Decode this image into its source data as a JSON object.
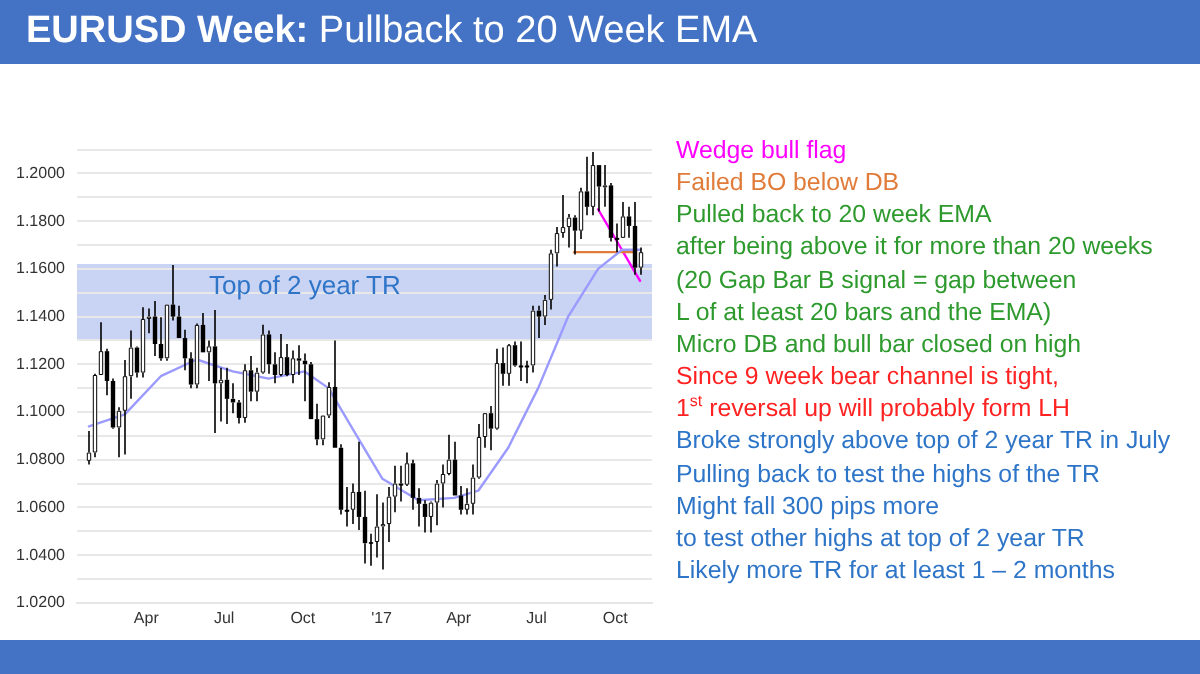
{
  "chart_data": {
    "type": "candlestick",
    "title": "EURUSD Week: Pullback to 20 Week EMA",
    "x": [
      "2016-01-25",
      "2016-02-01",
      "2016-02-08",
      "2016-02-15",
      "2016-02-22",
      "2016-02-29",
      "2016-03-07",
      "2016-03-14",
      "2016-03-21",
      "2016-03-28",
      "2016-04-04",
      "2016-04-11",
      "2016-04-18",
      "2016-04-25",
      "2016-05-02",
      "2016-05-09",
      "2016-05-16",
      "2016-05-23",
      "2016-05-30",
      "2016-06-06",
      "2016-06-13",
      "2016-06-20",
      "2016-06-27",
      "2016-07-04",
      "2016-07-11",
      "2016-07-18",
      "2016-07-25",
      "2016-08-01",
      "2016-08-08",
      "2016-08-15",
      "2016-08-22",
      "2016-08-29",
      "2016-09-05",
      "2016-09-12",
      "2016-09-19",
      "2016-09-26",
      "2016-10-03",
      "2016-10-10",
      "2016-10-17",
      "2016-10-24",
      "2016-10-31",
      "2016-11-07",
      "2016-11-14",
      "2016-11-21",
      "2016-11-28",
      "2016-12-05",
      "2016-12-12",
      "2016-12-19",
      "2016-12-26",
      "2017-01-02",
      "2017-01-09",
      "2017-01-16",
      "2017-01-23",
      "2017-01-30",
      "2017-02-06",
      "2017-02-13",
      "2017-02-20",
      "2017-02-27",
      "2017-03-06",
      "2017-03-13",
      "2017-03-20",
      "2017-03-27",
      "2017-04-03",
      "2017-04-10",
      "2017-04-17",
      "2017-04-24",
      "2017-05-01",
      "2017-05-08",
      "2017-05-15",
      "2017-05-22",
      "2017-05-29",
      "2017-06-05",
      "2017-06-12",
      "2017-06-19",
      "2017-06-26",
      "2017-07-03",
      "2017-07-10",
      "2017-07-17",
      "2017-07-24",
      "2017-07-31",
      "2017-08-07",
      "2017-08-14",
      "2017-08-21",
      "2017-08-28",
      "2017-09-04",
      "2017-09-11",
      "2017-09-18",
      "2017-09-25",
      "2017-10-02",
      "2017-10-09",
      "2017-10-16",
      "2017-10-23",
      "2017-10-30"
    ],
    "ohlc": [
      [
        1.0795,
        1.092,
        1.078,
        1.083
      ],
      [
        1.083,
        1.116,
        1.081,
        1.1155
      ],
      [
        1.1155,
        1.1376,
        1.1155,
        1.1255
      ],
      [
        1.1255,
        1.1265,
        1.107,
        1.113
      ],
      [
        1.113,
        1.114,
        1.093,
        1.0935
      ],
      [
        1.0935,
        1.102,
        1.081,
        1.1005
      ],
      [
        1.1005,
        1.1218,
        1.0822,
        1.115
      ],
      [
        1.115,
        1.1342,
        1.1055,
        1.127
      ],
      [
        1.127,
        1.1275,
        1.1145,
        1.1165
      ],
      [
        1.1165,
        1.1439,
        1.1145,
        1.139
      ],
      [
        1.139,
        1.1434,
        1.133,
        1.14
      ],
      [
        1.14,
        1.1465,
        1.1235,
        1.1285
      ],
      [
        1.1285,
        1.1397,
        1.1215,
        1.1225
      ],
      [
        1.1225,
        1.145,
        1.1215,
        1.145
      ],
      [
        1.145,
        1.1616,
        1.1384,
        1.14
      ],
      [
        1.14,
        1.1445,
        1.131,
        1.131
      ],
      [
        1.131,
        1.1345,
        1.1175,
        1.1225
      ],
      [
        1.1225,
        1.125,
        1.11,
        1.1115
      ],
      [
        1.1115,
        1.1371,
        1.11,
        1.1365
      ],
      [
        1.1365,
        1.1415,
        1.125,
        1.125
      ],
      [
        1.125,
        1.13,
        1.113,
        1.1275
      ],
      [
        1.1275,
        1.1428,
        1.0912,
        1.112
      ],
      [
        1.112,
        1.1185,
        1.096,
        1.1135
      ],
      [
        1.1135,
        1.1185,
        1.095,
        1.1055
      ],
      [
        1.1055,
        1.112,
        1.0995,
        1.104
      ],
      [
        1.104,
        1.105,
        1.0952,
        1.0975
      ],
      [
        1.0975,
        1.12,
        1.0955,
        1.1175
      ],
      [
        1.1175,
        1.1235,
        1.1045,
        1.1085
      ],
      [
        1.1085,
        1.1185,
        1.1045,
        1.1165
      ],
      [
        1.1165,
        1.1366,
        1.116,
        1.1325
      ],
      [
        1.1325,
        1.1342,
        1.116,
        1.12
      ],
      [
        1.12,
        1.125,
        1.112,
        1.1155
      ],
      [
        1.1155,
        1.1327,
        1.115,
        1.123
      ],
      [
        1.123,
        1.1285,
        1.115,
        1.1155
      ],
      [
        1.1155,
        1.1258,
        1.112,
        1.1225
      ],
      [
        1.1225,
        1.128,
        1.1155,
        1.1215
      ],
      [
        1.1215,
        1.1245,
        1.1045,
        1.12
      ],
      [
        1.12,
        1.121,
        1.097,
        1.097
      ],
      [
        1.097,
        1.1035,
        1.086,
        1.0885
      ],
      [
        1.0885,
        1.0985,
        1.086,
        1.0985
      ],
      [
        1.0985,
        1.1125,
        1.0975,
        1.1105
      ],
      [
        1.1105,
        1.13,
        1.085,
        1.085
      ],
      [
        1.085,
        1.0865,
        1.057,
        1.059
      ],
      [
        1.059,
        1.0685,
        1.052,
        1.059
      ],
      [
        1.059,
        1.07,
        1.053,
        1.0665
      ],
      [
        1.0665,
        1.0875,
        1.0505,
        1.056
      ],
      [
        1.056,
        1.067,
        1.0365,
        1.045
      ],
      [
        1.045,
        1.049,
        1.0355,
        1.0455
      ],
      [
        1.0455,
        1.0655,
        1.039,
        1.052
      ],
      [
        1.052,
        1.062,
        1.034,
        1.053
      ],
      [
        1.053,
        1.0685,
        1.0455,
        1.0645
      ],
      [
        1.0645,
        1.0775,
        1.058,
        1.07
      ],
      [
        1.07,
        1.0775,
        1.0625,
        1.0695
      ],
      [
        1.0695,
        1.083,
        1.069,
        1.0785
      ],
      [
        1.0785,
        1.08,
        1.059,
        1.064
      ],
      [
        1.064,
        1.068,
        1.052,
        1.0615
      ],
      [
        1.0615,
        1.063,
        1.0495,
        1.056
      ],
      [
        1.056,
        1.0625,
        1.0495,
        1.062
      ],
      [
        1.062,
        1.0715,
        1.0525,
        1.07
      ],
      [
        1.07,
        1.078,
        1.06,
        1.074
      ],
      [
        1.074,
        1.0905,
        1.0735,
        1.08
      ],
      [
        1.08,
        1.0875,
        1.065,
        1.065
      ],
      [
        1.065,
        1.069,
        1.057,
        1.059
      ],
      [
        1.059,
        1.068,
        1.057,
        1.0615
      ],
      [
        1.0615,
        1.078,
        1.057,
        1.0725
      ],
      [
        1.0725,
        1.095,
        1.072,
        1.0895
      ],
      [
        1.0895,
        1.0995,
        1.085,
        1.0995
      ],
      [
        1.0995,
        1.1025,
        1.084,
        1.093
      ],
      [
        1.093,
        1.1265,
        1.0925,
        1.1205
      ],
      [
        1.1205,
        1.127,
        1.111,
        1.116
      ],
      [
        1.116,
        1.1285,
        1.111,
        1.128
      ],
      [
        1.128,
        1.1295,
        1.119,
        1.1195
      ],
      [
        1.1195,
        1.1295,
        1.113,
        1.1195
      ],
      [
        1.1195,
        1.1215,
        1.112,
        1.1195
      ],
      [
        1.1195,
        1.1445,
        1.1165,
        1.1425
      ],
      [
        1.1425,
        1.1445,
        1.131,
        1.14
      ],
      [
        1.14,
        1.149,
        1.1365,
        1.147
      ],
      [
        1.147,
        1.168,
        1.143,
        1.1665
      ],
      [
        1.1665,
        1.1775,
        1.161,
        1.175
      ],
      [
        1.175,
        1.191,
        1.173,
        1.1775
      ],
      [
        1.1775,
        1.183,
        1.169,
        1.1815
      ],
      [
        1.1815,
        1.1825,
        1.166,
        1.176
      ],
      [
        1.176,
        1.194,
        1.1725,
        1.1925
      ],
      [
        1.1925,
        1.207,
        1.1825,
        1.186
      ],
      [
        1.186,
        1.209,
        1.1825,
        1.2035
      ],
      [
        1.2035,
        1.2035,
        1.184,
        1.1945
      ],
      [
        1.1945,
        1.2035,
        1.186,
        1.195
      ],
      [
        1.195,
        1.196,
        1.1715,
        1.173
      ],
      [
        1.173,
        1.179,
        1.167,
        1.173
      ],
      [
        1.173,
        1.188,
        1.173,
        1.182
      ],
      [
        1.182,
        1.186,
        1.173,
        1.178
      ],
      [
        1.178,
        1.188,
        1.1575,
        1.1605
      ],
      [
        1.1605,
        1.169,
        1.1575,
        1.167
      ]
    ],
    "series": [
      {
        "type": "line",
        "color": "#9b9bff",
        "x": [
          "2016-01-25",
          "2016-03-07",
          "2016-04-18",
          "2016-05-30",
          "2016-07-11",
          "2016-08-22",
          "2016-10-03",
          "2016-10-31",
          "2016-11-28",
          "2017-01-02",
          "2017-02-13",
          "2017-03-27",
          "2017-04-24",
          "2017-05-29",
          "2017-07-03",
          "2017-08-07",
          "2017-09-11",
          "2017-10-09",
          "2017-10-30"
        ],
        "values": [
          1.094,
          1.099,
          1.115,
          1.122,
          1.117,
          1.114,
          1.117,
          1.11,
          1.093,
          1.072,
          1.063,
          1.064,
          1.067,
          1.085,
          1.11,
          1.14,
          1.16,
          1.168,
          1.168
        ]
      },
      {
        "type": "line",
        "color": "#e07b39",
        "x": [
          "2017-08-14",
          "2017-10-23"
        ],
        "values": [
          1.167,
          1.167
        ]
      },
      {
        "type": "line",
        "color": "#ff00ff",
        "x": [
          "2017-09-11",
          "2017-10-30"
        ],
        "values": [
          1.185,
          1.155
        ]
      }
    ],
    "bands": [
      {
        "axis": "y",
        "from": 1.13,
        "to": 1.162,
        "label": "Top of 2 year TR",
        "color": "#c9d3f3"
      }
    ],
    "xlim": [
      "2016-01-11",
      "2017-11-13"
    ],
    "xticks": [
      {
        "value": "2016-04-01",
        "label": "Apr"
      },
      {
        "value": "2016-07-01",
        "label": "Jul"
      },
      {
        "value": "2016-10-01",
        "label": "Oct"
      },
      {
        "value": "2017-01-01",
        "label": "'17"
      },
      {
        "value": "2017-04-01",
        "label": "Apr"
      },
      {
        "value": "2017-07-01",
        "label": "Jul"
      },
      {
        "value": "2017-10-01",
        "label": "Oct"
      }
    ],
    "ylim": [
      1.02,
      1.21
    ],
    "yticks": [
      {
        "value": 1.02,
        "label": "1.0200"
      },
      {
        "value": 1.03,
        "label": null
      },
      {
        "value": 1.04,
        "label": "1.0400"
      },
      {
        "value": 1.05,
        "label": null
      },
      {
        "value": 1.06,
        "label": "1.0600"
      },
      {
        "value": 1.07,
        "label": null
      },
      {
        "value": 1.08,
        "label": "1.0800"
      },
      {
        "value": 1.09,
        "label": null
      },
      {
        "value": 1.1,
        "label": "1.1000"
      },
      {
        "value": 1.11,
        "label": null
      },
      {
        "value": 1.12,
        "label": "1.1200"
      },
      {
        "value": 1.13,
        "label": null
      },
      {
        "value": 1.14,
        "label": "1.1400"
      },
      {
        "value": 1.15,
        "label": null
      },
      {
        "value": 1.16,
        "label": "1.1600"
      },
      {
        "value": 1.17,
        "label": null
      },
      {
        "value": 1.18,
        "label": "1.1800"
      },
      {
        "value": 1.19,
        "label": null
      },
      {
        "value": 1.2,
        "label": "1.2000"
      },
      {
        "value": 1.21,
        "label": null
      }
    ],
    "grid": "y",
    "legend": false,
    "annotations": [
      "Wedge bull flag",
      "Failed BO below DB",
      "Pulled back to 20 week EMA",
      "after being above it for more than 20 weeks",
      "(20 Gap Bar B signal = gap between",
      "L of at least 20 bars and the EMA)",
      "Micro DB and bull bar closed on high",
      "Since 9 week bear channel is tight,",
      "1$^{st}$ reversal up will probably form LH",
      "Broke strongly above top of 2 year TR in July",
      "Pulling back to test the highs of the TR",
      "Might fall 300 pips more",
      "to test other highs at top of 2 year TR",
      "Likely more TR for at least 1 – 2 months"
    ]
  }
}
